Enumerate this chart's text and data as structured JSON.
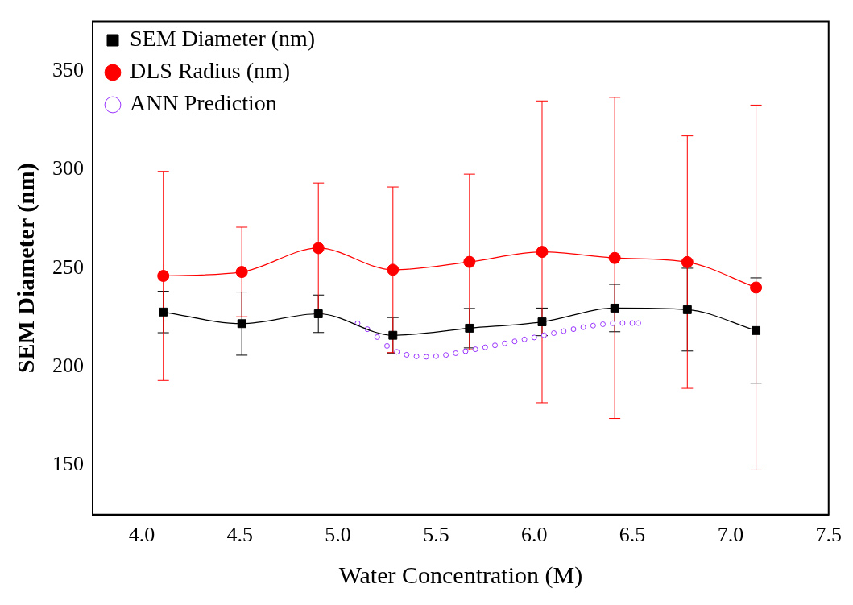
{
  "chart_data": {
    "type": "line",
    "xlabel": "Water Concentration (M)",
    "ylabel": "SEM Diameter (nm)",
    "xlim": [
      3.75,
      7.5
    ],
    "ylim": [
      125,
      375
    ],
    "xticks": [
      {
        "value": 4,
        "label": "4.0"
      },
      4.5,
      {
        "value": 5,
        "label": "5.0"
      },
      5.5,
      {
        "value": 6,
        "label": "6.0"
      },
      6.5,
      {
        "value": 7,
        "label": "7.0"
      },
      7.5
    ],
    "yticks": [
      150,
      200,
      250,
      300,
      350
    ],
    "grid": false,
    "legend": "top left",
    "line_style": "solid",
    "series": [
      {
        "name": "SEM Diameter (nm)",
        "color": "#000000",
        "marker": "square",
        "x": [
          4.11,
          4.51,
          4.9,
          5.28,
          5.67,
          6.04,
          6.41,
          6.78,
          7.13
        ],
        "values": [
          227.7,
          221.8,
          226.8,
          215.9,
          219.5,
          222.7,
          229.7,
          228.9,
          218.3
        ],
        "errors": [
          10.5,
          16,
          9.5,
          9,
          10,
          7,
          12,
          21,
          26.7
        ]
      },
      {
        "name": "DLS Radius (nm)",
        "color": "#ff0000",
        "marker": "circle",
        "x": [
          4.11,
          4.51,
          4.9,
          5.28,
          5.67,
          6.04,
          6.41,
          6.78,
          7.13
        ],
        "values": [
          246,
          248,
          260.1,
          249.1,
          253.1,
          258.2,
          255.1,
          253,
          240.1
        ],
        "errors": [
          53,
          22.7,
          33,
          42,
          44.5,
          76.5,
          81.4,
          64,
          92.5
        ]
      },
      {
        "name": "ANN Prediction",
        "type": "scatter",
        "color": "#9933ff",
        "marker": "circle",
        "x": [
          5.1,
          5.15,
          5.2,
          5.25,
          5.3,
          5.35,
          5.4,
          5.45,
          5.5,
          5.55,
          5.6,
          5.65,
          5.7,
          5.75,
          5.8,
          5.85,
          5.9,
          5.95,
          6.0,
          6.05,
          6.1,
          6.15,
          6.2,
          6.25,
          6.3,
          6.35,
          6.4,
          6.45,
          6.5,
          6.53
        ],
        "values": [
          222,
          219,
          215,
          210.5,
          207.5,
          206,
          205.2,
          205,
          205.3,
          205.9,
          206.8,
          207.8,
          208.8,
          209.8,
          210.8,
          211.8,
          212.8,
          213.8,
          214.8,
          215.9,
          217,
          218,
          219,
          220,
          220.8,
          221.5,
          222,
          222.1,
          222.1,
          222.1
        ]
      }
    ]
  }
}
